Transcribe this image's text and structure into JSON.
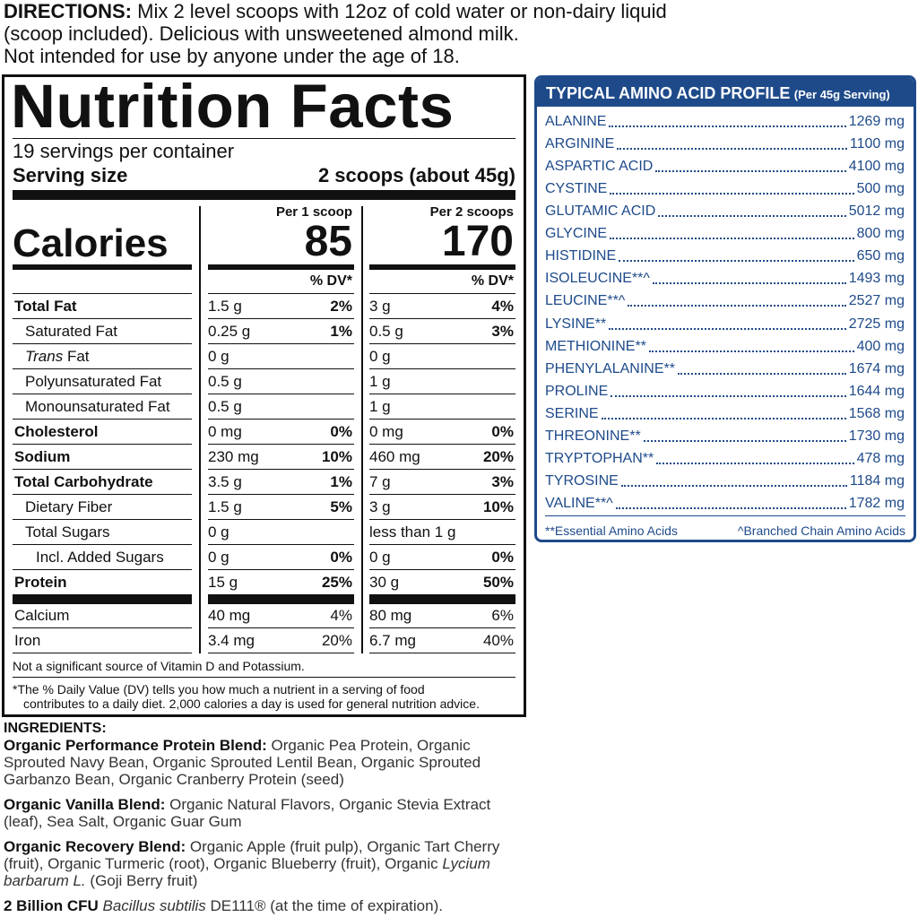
{
  "directions": {
    "label": "DIRECTIONS:",
    "lines": [
      "Mix 2 level scoops with 12oz of cold water or non-dairy liquid",
      "(scoop included). Delicious with unsweetened almond milk.",
      "Not intended for use by anyone under the age of 18."
    ]
  },
  "nutrition_facts": {
    "title": "Nutrition Facts",
    "servings": "19 servings per container",
    "serving_size_label": "Serving size",
    "serving_size": "2 scoops (about 45g)",
    "calories_label": "Calories",
    "columns": [
      {
        "header": "Per 1 scoop",
        "calories": "85",
        "dv_header": "% DV*"
      },
      {
        "header": "Per 2 scoops",
        "calories": "170",
        "dv_header": "% DV*"
      }
    ],
    "rows": [
      {
        "name": "Total Fat",
        "bold": true,
        "indent": 0,
        "amount_1": "1.5 g",
        "dv_1": "2%",
        "amount_2": "3 g",
        "dv_2": "4%"
      },
      {
        "name": "Saturated Fat",
        "indent": 1,
        "amount_1": "0.25 g",
        "dv_1": "1%",
        "amount_2": "0.5 g",
        "dv_2": "3%"
      },
      {
        "name_italic": "Trans",
        "name": "Fat",
        "indent": 1,
        "amount_1": "0 g",
        "amount_2": "0 g"
      },
      {
        "name": "Polyunsaturated Fat",
        "indent": 1,
        "amount_1": "0.5 g",
        "amount_2": "1 g"
      },
      {
        "name": "Monounsaturated Fat",
        "indent": 1,
        "amount_1": "0.5 g",
        "amount_2": "1 g"
      },
      {
        "name": "Cholesterol",
        "bold": true,
        "indent": 0,
        "amount_1": "0 mg",
        "dv_1": "0%",
        "amount_2": "0 mg",
        "dv_2": "0%"
      },
      {
        "name": "Sodium",
        "bold": true,
        "indent": 0,
        "amount_1": "230 mg",
        "dv_1": "10%",
        "amount_2": "460 mg",
        "dv_2": "20%"
      },
      {
        "name": "Total Carbohydrate",
        "bold": true,
        "indent": 0,
        "amount_1": "3.5 g",
        "dv_1": "1%",
        "amount_2": "7 g",
        "dv_2": "3%"
      },
      {
        "name": "Dietary Fiber",
        "indent": 1,
        "amount_1": "1.5 g",
        "dv_1": "5%",
        "amount_2": "3 g",
        "dv_2": "10%"
      },
      {
        "name": "Total Sugars",
        "indent": 1,
        "amount_1": "0 g",
        "amount_2": "less than 1 g"
      },
      {
        "name": "Incl. Added Sugars",
        "indent": 2,
        "amount_1": "0 g",
        "dv_1": "0%",
        "amount_2": "0 g",
        "dv_2": "0%"
      },
      {
        "name": "Protein",
        "bold": true,
        "indent": 0,
        "amount_1": "15 g",
        "dv_1": "25%",
        "amount_2": "30 g",
        "dv_2": "50%"
      }
    ],
    "minerals": [
      {
        "name": "Calcium",
        "indent": 0,
        "amount_1": "40 mg",
        "dv_1": "4%",
        "amount_2": "80 mg",
        "dv_2": "6%"
      },
      {
        "name": "Iron",
        "indent": 0,
        "amount_1": "3.4 mg",
        "dv_1": "20%",
        "amount_2": "6.7 mg",
        "dv_2": "40%"
      }
    ],
    "footnote": "Not a significant source of Vitamin D and Potassium.",
    "dv_note": [
      "*The % Daily Value (DV) tells you how much a nutrient in a serving of food",
      "contributes to a daily diet. 2,000 calories a day is used for general nutrition advice."
    ]
  },
  "amino_acid_profile": {
    "title": "TYPICAL AMINO ACID PROFILE",
    "subtitle": "(Per 45g Serving)",
    "rows": [
      {
        "name": "ALANINE",
        "value": "1269 mg"
      },
      {
        "name": "ARGININE",
        "value": "1100 mg"
      },
      {
        "name": "ASPARTIC ACID",
        "value": "4100 mg"
      },
      {
        "name": "CYSTINE",
        "value": "500 mg"
      },
      {
        "name": "GLUTAMIC ACID",
        "value": "5012 mg"
      },
      {
        "name": "GLYCINE",
        "value": "800 mg"
      },
      {
        "name": "HISTIDINE",
        "value": "650 mg"
      },
      {
        "name": "ISOLEUCINE**^",
        "value": "1493 mg"
      },
      {
        "name": "LEUCINE**^",
        "value": "2527 mg"
      },
      {
        "name": "LYSINE**",
        "value": "2725 mg"
      },
      {
        "name": "METHIONINE**",
        "value": "400 mg"
      },
      {
        "name": "PHENYLALANINE**",
        "value": "1674 mg"
      },
      {
        "name": "PROLINE",
        "value": "1644 mg"
      },
      {
        "name": "SERINE",
        "value": "1568 mg"
      },
      {
        "name": "THREONINE**",
        "value": "1730 mg"
      },
      {
        "name": "TRYPTOPHAN**",
        "value": "478 mg"
      },
      {
        "name": "TYROSINE",
        "value": "1184 mg"
      },
      {
        "name": "VALINE**^",
        "value": "1782 mg"
      }
    ],
    "footnotes": [
      "**Essential Amino Acids",
      "^Branched Chain Amino Acids"
    ]
  },
  "ingredients": {
    "heading": "INGREDIENTS:",
    "paragraphs": [
      [
        {
          "text": "Organic Performance Protein Blend:",
          "bold": true
        },
        {
          "text": "Organic Pea Protein, Organic Sprouted Navy Bean, Organic Sprouted Lentil Bean, Organic Sprouted Garbanzo Bean, Organic Cranberry Protein (seed)"
        }
      ],
      [
        {
          "text": "Organic Vanilla Blend:",
          "bold": true
        },
        {
          "text": "Organic Natural Flavors, Organic Stevia Extract (leaf), Sea Salt, Organic Guar Gum"
        }
      ],
      [
        {
          "text": "Organic Recovery Blend:",
          "bold": true
        },
        {
          "text": "Organic Apple (fruit pulp), Organic Tart Cherry (fruit), Organic Turmeric (root), Organic Blueberry (fruit), Organic"
        },
        {
          "text": "Lycium barbarum L.",
          "italic": true
        },
        {
          "text": "(Goji Berry fruit)"
        }
      ],
      [
        {
          "text": "2 Billion CFU",
          "bold": true
        },
        {
          "text": "Bacillus subtilis",
          "italic": true
        },
        {
          "text": "DE111® (at the time of expiration)."
        }
      ]
    ]
  }
}
